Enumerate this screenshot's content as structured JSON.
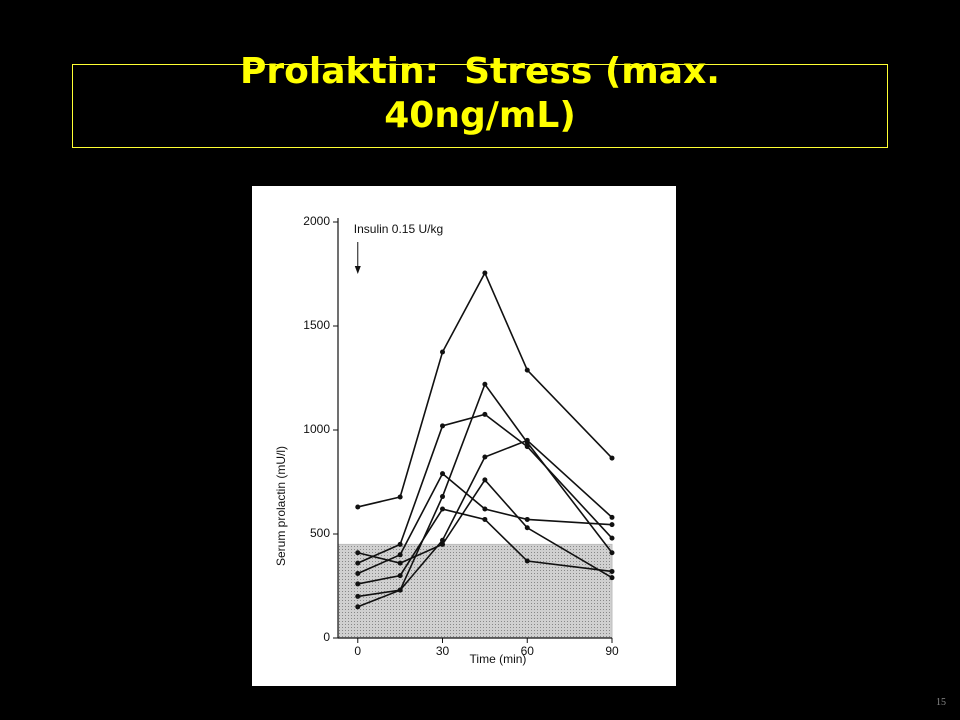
{
  "chart_data": {
    "type": "line",
    "title": "Prolaktin:  Stress (max. 40ng/mL)",
    "annotation": "Insulin 0.15 U/kg",
    "annotation_x": 0,
    "x_label": "Time (min)",
    "y_label": "Serum prolactin (mU/l)",
    "x": [
      0,
      15,
      30,
      45,
      60,
      90
    ],
    "series": [
      {
        "color": "#111111",
        "values": [
          630,
          678,
          1375,
          1755,
          1288,
          865
        ]
      },
      {
        "color": "#111111",
        "values": [
          150,
          230,
          680,
          1220,
          940,
          410
        ]
      },
      {
        "color": "#111111",
        "values": [
          360,
          450,
          1020,
          1075,
          920,
          480
        ]
      },
      {
        "color": "#111111",
        "values": [
          200,
          230,
          470,
          870,
          950,
          580
        ]
      },
      {
        "color": "#111111",
        "values": [
          310,
          400,
          790,
          620,
          570,
          545
        ]
      },
      {
        "color": "#111111",
        "values": [
          260,
          300,
          620,
          570,
          370,
          320
        ]
      },
      {
        "color": "#111111",
        "values": [
          410,
          360,
          450,
          760,
          530,
          290
        ]
      }
    ],
    "reference_band": {
      "ymin": 0,
      "ymax": 450,
      "color": "#bdbdbd"
    },
    "xlim": [
      -7,
      90
    ],
    "ylim": [
      0,
      2000
    ],
    "xticks": [
      0,
      30,
      60,
      90
    ],
    "yticks": [
      0,
      500,
      1000,
      1500,
      2000
    ],
    "slide_number": "15"
  }
}
